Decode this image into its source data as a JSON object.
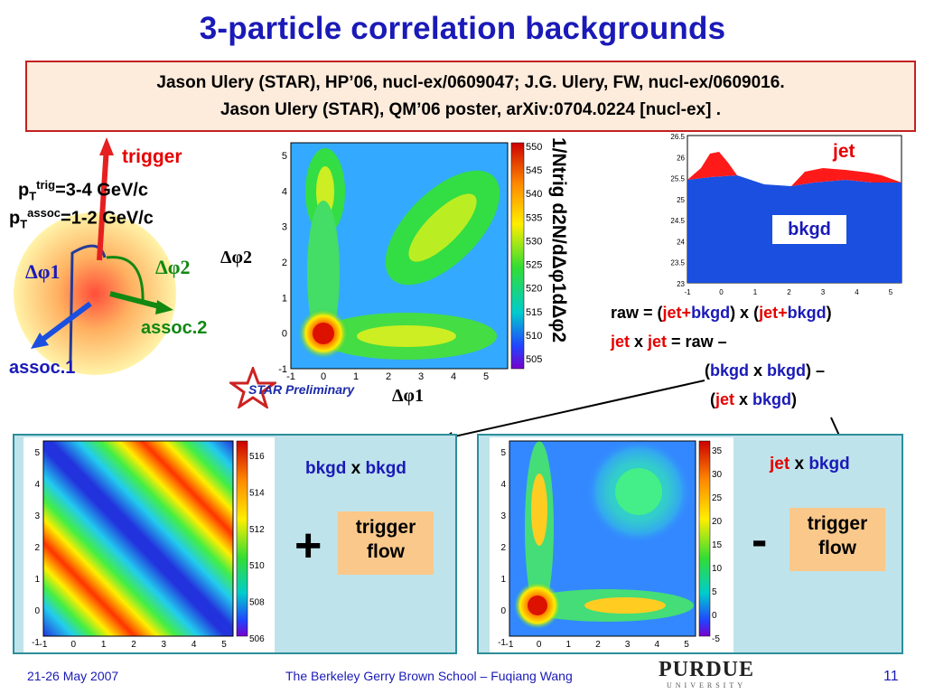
{
  "title": "3-particle correlation backgrounds",
  "refs": {
    "line1": "Jason Ulery (STAR), HP’06, nucl-ex/0609047; J.G. Ulery, FW, nucl-ex/0609016.",
    "line2": "Jason Ulery (STAR), QM’06 poster, arXiv:0704.0224 [nucl-ex] ."
  },
  "schematic": {
    "trigger": "trigger",
    "pt_trig_base": "p",
    "pt_trig_sub": "T",
    "pt_trig_sup": "trig",
    "pt_trig_val": "=3-4 GeV/c",
    "pt_assoc_base": "p",
    "pt_assoc_sub": "T",
    "pt_assoc_sup": "assoc",
    "pt_assoc_val": "=1-2 GeV/c",
    "dphi1": "Δφ1",
    "dphi2": "Δφ2",
    "assoc1": "assoc.1",
    "assoc2": "assoc.2"
  },
  "main_plot": {
    "xlabel": "Δφ1",
    "ylabel": "Δφ2",
    "zlabel": "1/Ntrig d2N/dΔφ1dΔφ2",
    "xticks": [
      "-1",
      "0",
      "1",
      "2",
      "3",
      "4",
      "5"
    ],
    "yticks": [
      "-1",
      "0",
      "1",
      "2",
      "3",
      "4",
      "5"
    ],
    "zticks": [
      "550",
      "545",
      "540",
      "535",
      "530",
      "525",
      "520",
      "515",
      "510",
      "505"
    ],
    "star_label": "STAR Preliminary"
  },
  "hist": {
    "yticks": [
      "26.5",
      "26",
      "25.5",
      "25",
      "24.5",
      "24",
      "23.5",
      "23"
    ],
    "xticks": [
      "-1",
      "0",
      "1",
      "2",
      "3",
      "4",
      "5"
    ],
    "jet_label": "jet",
    "bkgd_label": "bkgd"
  },
  "equations": {
    "l1": [
      "raw = (",
      "jet",
      "+",
      "bkgd",
      ") x (",
      "jet",
      "+",
      "bkgd",
      ")"
    ],
    "l2": [
      "jet",
      " x ",
      "jet",
      " = raw –"
    ],
    "l3": [
      "(",
      "bkgd",
      " x ",
      "bkgd",
      ") –"
    ],
    "l4": [
      "(",
      "jet",
      " x ",
      "bkgd",
      ")"
    ]
  },
  "panel_left": {
    "label_a": "bkgd",
    "label_x": " x ",
    "label_b": "bkgd",
    "op": "+",
    "flow": [
      "trigger",
      "flow"
    ],
    "zticks": [
      "516",
      "514",
      "512",
      "510",
      "508",
      "506"
    ],
    "xticks": [
      "-1",
      "0",
      "1",
      "2",
      "3",
      "4",
      "5"
    ],
    "yticks": [
      "5",
      "4",
      "3",
      "2",
      "1",
      "0",
      "-1"
    ]
  },
  "panel_right": {
    "label_a": "jet",
    "label_x": " x ",
    "label_b": "bkgd",
    "op": "-",
    "flow": [
      "trigger",
      "flow"
    ],
    "zticks": [
      "35",
      "30",
      "25",
      "20",
      "15",
      "10",
      "5",
      "0",
      "-5"
    ],
    "xticks": [
      "-1",
      "0",
      "1",
      "2",
      "3",
      "4",
      "5"
    ],
    "yticks": [
      "5",
      "4",
      "3",
      "2",
      "1",
      "0",
      "-1"
    ]
  },
  "footer": {
    "date": "21-26 May 2007",
    "center": "The Berkeley Gerry Brown School – Fuqiang Wang",
    "logo_top": "PURDUE",
    "logo_bottom": "UNIVERSITY",
    "page": "11"
  },
  "colors": {
    "title": "#1a1ab8",
    "jet": "#e60000",
    "bkgd": "#1a1ab8",
    "assoc2": "#118811",
    "panel": "#bfe3ea",
    "flow_box": "#fac88a"
  }
}
